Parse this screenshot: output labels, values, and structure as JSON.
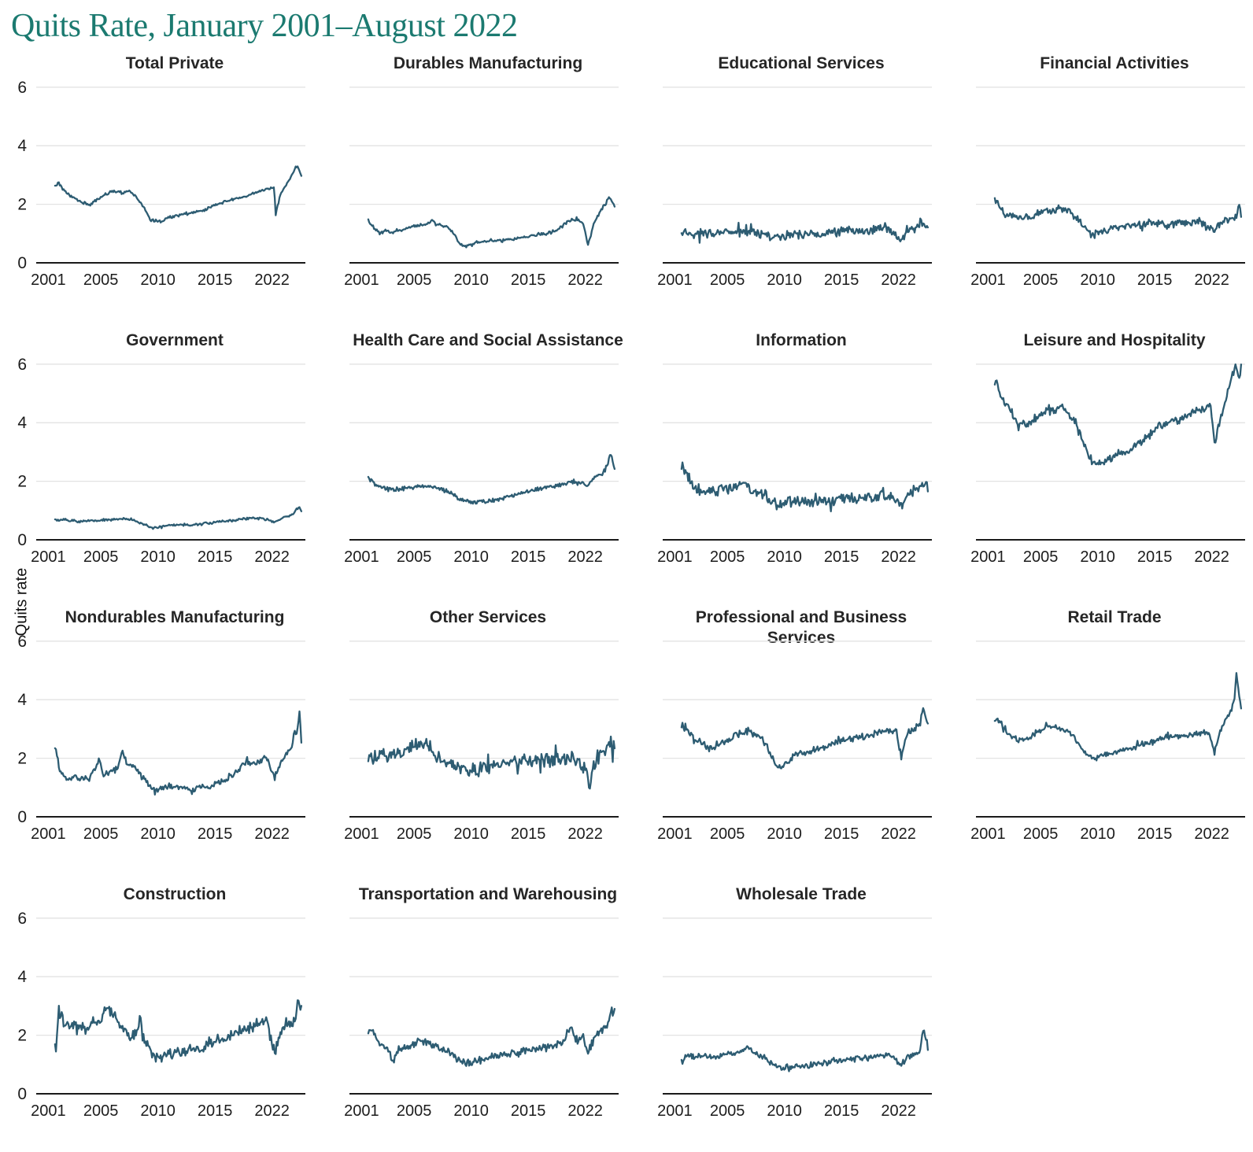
{
  "title": "Quits Rate, January 2001–August 2022",
  "ylabel": "Quits rate",
  "colors": {
    "title_accent": "#1b7a70",
    "line": "#2d5c72",
    "gridline": "#e3e3e3",
    "axis_line": "#1a1a1a",
    "panel_title": "#262626"
  },
  "axis": {
    "y_tick_labels": [
      "0",
      "2",
      "4",
      "6"
    ],
    "y_ticks": [
      0,
      2,
      4,
      6
    ],
    "ylim": [
      0,
      6
    ],
    "x_tick_labels": [
      "2001",
      "2005",
      "2010",
      "2015",
      "2022"
    ],
    "x_domain_years": [
      2001.0,
      2022.667
    ],
    "grid": "horizontal-only",
    "y_labels_only_on_first_column": true
  },
  "chart_data": [
    {
      "type": "line",
      "title": "Total Private",
      "noise": 0.045,
      "x": [
        2001,
        2001.3,
        2001.8,
        2002.5,
        2003.5,
        2004,
        2004.8,
        2005.5,
        2006,
        2007,
        2007.5,
        2008,
        2008.8,
        2009.4,
        2010.3,
        2011,
        2012,
        2013,
        2014,
        2015,
        2016,
        2017,
        2018,
        2019,
        2019.9,
        2020.2,
        2020.33,
        2020.8,
        2021.3,
        2021.9,
        2022.1,
        2022.4,
        2022.58
      ],
      "values": [
        2.6,
        2.75,
        2.45,
        2.25,
        2.05,
        1.97,
        2.2,
        2.35,
        2.45,
        2.4,
        2.45,
        2.3,
        1.9,
        1.45,
        1.42,
        1.55,
        1.65,
        1.7,
        1.8,
        1.95,
        2.1,
        2.2,
        2.3,
        2.45,
        2.55,
        2.6,
        1.65,
        2.4,
        2.7,
        3.1,
        3.3,
        3.2,
        3.0
      ]
    },
    {
      "type": "line",
      "title": "Durables Manufacturing",
      "noise": 0.06,
      "x": [
        2001,
        2001.5,
        2002,
        2002.5,
        2003,
        2004,
        2005,
        2006,
        2006.5,
        2007,
        2007.8,
        2008.5,
        2009,
        2009.5,
        2010,
        2010.5,
        2011.5,
        2012.5,
        2013.5,
        2014.5,
        2015.5,
        2016.5,
        2017.5,
        2018.3,
        2019,
        2019.8,
        2020.25,
        2020.8,
        2021.3,
        2021.8,
        2022.1,
        2022.3,
        2022.58
      ],
      "values": [
        1.45,
        1.2,
        1.0,
        1.1,
        1.05,
        1.15,
        1.25,
        1.3,
        1.45,
        1.3,
        1.25,
        1.0,
        0.65,
        0.55,
        0.6,
        0.7,
        0.75,
        0.75,
        0.8,
        0.85,
        0.95,
        1.0,
        1.1,
        1.35,
        1.45,
        1.4,
        0.6,
        1.4,
        1.75,
        2.0,
        2.25,
        2.1,
        1.95
      ]
    },
    {
      "type": "line",
      "title": "Educational Services",
      "noise": 0.16,
      "x": [
        2001,
        2002,
        2003,
        2004,
        2005,
        2006,
        2007,
        2008,
        2009,
        2010,
        2011,
        2012,
        2013,
        2014,
        2015,
        2016,
        2017,
        2018,
        2019,
        2020.25,
        2020.7,
        2021.5,
        2022.1,
        2022.4,
        2022.58
      ],
      "values": [
        1.05,
        1.0,
        1.0,
        1.0,
        1.05,
        1.05,
        1.1,
        1.0,
        0.9,
        0.95,
        0.95,
        1.0,
        1.0,
        1.05,
        1.1,
        1.15,
        1.1,
        1.15,
        1.2,
        0.75,
        1.05,
        1.2,
        1.45,
        1.3,
        1.2
      ]
    },
    {
      "type": "line",
      "title": "Financial Activities",
      "noise": 0.14,
      "x": [
        2001,
        2001.5,
        2002,
        2003,
        2004,
        2005,
        2005.5,
        2006,
        2006.5,
        2007,
        2007.5,
        2008,
        2008.8,
        2009.5,
        2010,
        2010.5,
        2011,
        2012,
        2013,
        2014,
        2015,
        2016,
        2017,
        2018,
        2019,
        2020.25,
        2020.8,
        2021.5,
        2022.2,
        2022.45,
        2022.58
      ],
      "values": [
        2.2,
        1.9,
        1.6,
        1.5,
        1.55,
        1.7,
        1.85,
        1.7,
        1.85,
        1.85,
        1.8,
        1.6,
        1.25,
        1.0,
        0.95,
        1.1,
        1.15,
        1.2,
        1.25,
        1.3,
        1.35,
        1.3,
        1.35,
        1.4,
        1.4,
        1.05,
        1.35,
        1.5,
        1.6,
        2.1,
        1.7
      ]
    },
    {
      "type": "line",
      "title": "Government",
      "noise": 0.045,
      "x": [
        2001,
        2002,
        2003,
        2004,
        2005,
        2006,
        2007,
        2008,
        2009,
        2009.5,
        2010.3,
        2011,
        2012,
        2013,
        2014,
        2015,
        2016,
        2017,
        2018,
        2019,
        2020.25,
        2020.8,
        2021.3,
        2021.8,
        2022.15,
        2022.4,
        2022.58
      ],
      "values": [
        0.7,
        0.68,
        0.62,
        0.65,
        0.66,
        0.7,
        0.72,
        0.65,
        0.5,
        0.42,
        0.43,
        0.5,
        0.52,
        0.52,
        0.55,
        0.6,
        0.65,
        0.68,
        0.72,
        0.75,
        0.6,
        0.75,
        0.8,
        0.85,
        1.05,
        1.1,
        0.95
      ]
    },
    {
      "type": "line",
      "title": "Health Care and Social Assistance",
      "noise": 0.07,
      "x": [
        2001,
        2001.5,
        2002,
        2003,
        2004,
        2005,
        2006,
        2007,
        2008,
        2009,
        2010,
        2011,
        2012,
        2013,
        2014,
        2015,
        2016,
        2017,
        2018,
        2019,
        2020.25,
        2020.7,
        2021.5,
        2021.9,
        2022.2,
        2022.4,
        2022.58
      ],
      "values": [
        2.1,
        1.95,
        1.8,
        1.7,
        1.75,
        1.8,
        1.8,
        1.8,
        1.65,
        1.4,
        1.3,
        1.3,
        1.35,
        1.45,
        1.55,
        1.65,
        1.75,
        1.8,
        1.9,
        2.0,
        1.85,
        2.1,
        2.25,
        2.5,
        3.0,
        2.7,
        2.45
      ]
    },
    {
      "type": "line",
      "title": "Information",
      "noise": 0.19,
      "x": [
        2001.08,
        2001.4,
        2002,
        2003,
        2004,
        2005,
        2006,
        2006.5,
        2007,
        2008,
        2009,
        2009.8,
        2010.5,
        2011,
        2012,
        2013,
        2014,
        2015,
        2016,
        2017,
        2018,
        2019,
        2020.25,
        2020.8,
        2021.3,
        2021.8,
        2022.2,
        2022.58
      ],
      "values": [
        2.45,
        2.3,
        1.8,
        1.65,
        1.7,
        1.75,
        1.85,
        1.95,
        1.8,
        1.55,
        1.35,
        1.1,
        1.3,
        1.25,
        1.3,
        1.35,
        1.3,
        1.4,
        1.4,
        1.45,
        1.5,
        1.55,
        1.2,
        1.55,
        1.7,
        1.8,
        1.9,
        1.75
      ]
    },
    {
      "type": "line",
      "title": "Leisure and Hospitality",
      "noise": 0.14,
      "x": [
        2001.08,
        2001.5,
        2002,
        2002.7,
        2003,
        2003.7,
        2004.3,
        2005,
        2005.7,
        2006.3,
        2006.8,
        2007.3,
        2008,
        2008.7,
        2009.3,
        2010,
        2010.7,
        2011.5,
        2012.3,
        2013,
        2014,
        2015,
        2016,
        2016.5,
        2017,
        2017.8,
        2018.5,
        2019.3,
        2019.9,
        2020.25,
        2020.6,
        2021,
        2021.5,
        2021.9,
        2022.1,
        2022.3,
        2022.5,
        2022.58
      ],
      "values": [
        5.4,
        4.9,
        4.6,
        4.2,
        4.0,
        3.9,
        4.1,
        4.3,
        4.5,
        4.4,
        4.55,
        4.4,
        4.1,
        3.4,
        2.8,
        2.55,
        2.7,
        2.85,
        3.0,
        3.1,
        3.4,
        3.75,
        4.0,
        4.1,
        4.05,
        4.2,
        4.35,
        4.5,
        4.6,
        3.3,
        3.9,
        4.4,
        5.2,
        5.7,
        5.9,
        5.5,
        5.6,
        6.05
      ]
    },
    {
      "type": "line",
      "title": "Nondurables Manufacturing",
      "noise": 0.1,
      "x": [
        2001.08,
        2001.4,
        2002,
        2002.5,
        2003,
        2004,
        2004.9,
        2005.2,
        2005.8,
        2006.5,
        2006.9,
        2007.3,
        2008,
        2008.7,
        2009.3,
        2010,
        2011,
        2012,
        2013,
        2014,
        2015,
        2016,
        2017,
        2017.8,
        2018.5,
        2019,
        2019.5,
        2020.25,
        2020.8,
        2021.3,
        2021.8,
        2022,
        2022.2,
        2022.42,
        2022.52,
        2022.58
      ],
      "values": [
        2.3,
        1.6,
        1.25,
        1.35,
        1.3,
        1.3,
        1.95,
        1.4,
        1.55,
        1.65,
        2.3,
        1.8,
        1.7,
        1.4,
        1.0,
        0.95,
        1.0,
        1.0,
        0.95,
        1.0,
        1.1,
        1.3,
        1.55,
        1.9,
        1.8,
        1.9,
        2.05,
        1.35,
        1.85,
        2.2,
        2.5,
        2.9,
        2.8,
        3.6,
        3.1,
        2.55
      ]
    },
    {
      "type": "line",
      "title": "Other Services",
      "noise": 0.23,
      "x": [
        2001.08,
        2001.5,
        2002,
        2003,
        2004,
        2004.8,
        2005.3,
        2005.8,
        2006.3,
        2007,
        2008,
        2009,
        2010,
        2011,
        2012,
        2013,
        2014,
        2015,
        2016,
        2017,
        2018,
        2019,
        2020.2,
        2020.33,
        2020.7,
        2021.2,
        2021.7,
        2022.1,
        2022.4,
        2022.58
      ],
      "values": [
        2.1,
        2.0,
        2.1,
        2.1,
        2.2,
        2.5,
        2.5,
        2.4,
        2.4,
        2.0,
        1.85,
        1.7,
        1.6,
        1.65,
        1.7,
        1.85,
        1.9,
        1.9,
        1.95,
        1.95,
        2.0,
        2.05,
        1.6,
        0.75,
        1.7,
        2.1,
        2.3,
        2.5,
        2.4,
        2.35
      ]
    },
    {
      "type": "line",
      "title": "Professional and Business Services",
      "noise": 0.13,
      "x": [
        2001.08,
        2001.6,
        2002.2,
        2003,
        2003.6,
        2004.3,
        2005,
        2005.8,
        2006.5,
        2007,
        2007.8,
        2008.5,
        2009.2,
        2009.7,
        2010.3,
        2011,
        2012,
        2013,
        2014,
        2015,
        2016,
        2017,
        2018,
        2019,
        2019.8,
        2020.25,
        2020.7,
        2021.3,
        2021.9,
        2022.2,
        2022.4,
        2022.58
      ],
      "values": [
        3.1,
        2.9,
        2.6,
        2.45,
        2.3,
        2.5,
        2.6,
        2.8,
        2.9,
        2.9,
        2.8,
        2.4,
        1.8,
        1.65,
        1.9,
        2.1,
        2.2,
        2.3,
        2.45,
        2.6,
        2.7,
        2.75,
        2.85,
        2.95,
        3.0,
        2.05,
        2.8,
        3.0,
        3.2,
        3.75,
        3.4,
        3.1
      ]
    },
    {
      "type": "line",
      "title": "Retail Trade",
      "noise": 0.1,
      "x": [
        2001.08,
        2001.5,
        2002,
        2002.7,
        2003.3,
        2004,
        2004.8,
        2005.5,
        2006.2,
        2007,
        2007.8,
        2008.5,
        2009.2,
        2009.8,
        2010.5,
        2011.3,
        2012,
        2013,
        2014,
        2015,
        2016,
        2017,
        2018,
        2019,
        2019.8,
        2020.25,
        2020.7,
        2021.2,
        2021.7,
        2022,
        2022.17,
        2022.35,
        2022.58
      ],
      "values": [
        3.35,
        3.2,
        2.9,
        2.7,
        2.6,
        2.7,
        2.9,
        3.1,
        3.05,
        3.0,
        2.8,
        2.4,
        2.1,
        2.0,
        2.1,
        2.2,
        2.25,
        2.35,
        2.5,
        2.6,
        2.7,
        2.75,
        2.8,
        2.85,
        2.9,
        2.1,
        2.9,
        3.3,
        3.6,
        4.0,
        4.95,
        4.3,
        3.65
      ]
    },
    {
      "type": "line",
      "title": "Construction",
      "noise": 0.2,
      "x": [
        2001.08,
        2001.3,
        2001.7,
        2002.3,
        2003,
        2003.7,
        2004.3,
        2005,
        2005.5,
        2005.8,
        2006.3,
        2007,
        2007.6,
        2008.2,
        2008.45,
        2008.7,
        2009.2,
        2009.7,
        2010.3,
        2011,
        2012,
        2013,
        2014,
        2015,
        2016,
        2017,
        2018,
        2019,
        2019.5,
        2020.25,
        2020.8,
        2021.3,
        2021.8,
        2022.1,
        2022.35,
        2022.5,
        2022.58
      ],
      "values": [
        1.6,
        2.9,
        2.5,
        2.4,
        2.3,
        2.2,
        2.5,
        2.5,
        3.05,
        2.8,
        2.6,
        2.2,
        2.0,
        2.1,
        2.6,
        1.9,
        1.55,
        1.2,
        1.25,
        1.35,
        1.45,
        1.55,
        1.6,
        1.8,
        1.9,
        2.1,
        2.25,
        2.4,
        2.6,
        1.45,
        2.1,
        2.3,
        2.5,
        2.7,
        3.3,
        2.8,
        2.95
      ]
    },
    {
      "type": "line",
      "title": "Transportation and Warehousing",
      "noise": 0.13,
      "x": [
        2001.08,
        2001.4,
        2002,
        2002.7,
        2003.2,
        2003.7,
        2004.3,
        2005,
        2005.5,
        2006,
        2006.7,
        2007.3,
        2008,
        2008.7,
        2009.3,
        2010,
        2010.7,
        2011.5,
        2012.3,
        2013,
        2014,
        2015,
        2016,
        2017,
        2018,
        2018.7,
        2019.2,
        2019.8,
        2020.25,
        2020.8,
        2021.3,
        2021.8,
        2022.1,
        2022.3,
        2022.5,
        2022.58
      ],
      "values": [
        2.2,
        2.1,
        1.7,
        1.55,
        1.1,
        1.5,
        1.55,
        1.65,
        1.9,
        1.75,
        1.65,
        1.55,
        1.45,
        1.25,
        1.1,
        1.05,
        1.15,
        1.2,
        1.3,
        1.35,
        1.4,
        1.5,
        1.55,
        1.6,
        1.7,
        2.3,
        1.9,
        1.95,
        1.4,
        2.0,
        2.1,
        2.3,
        2.5,
        2.9,
        2.7,
        2.85
      ]
    },
    {
      "type": "line",
      "title": "Wholesale Trade",
      "noise": 0.1,
      "x": [
        2001.08,
        2001.5,
        2002,
        2003,
        2004,
        2005,
        2006,
        2006.8,
        2007.3,
        2008,
        2009,
        2009.7,
        2010.5,
        2011.5,
        2012.5,
        2013.5,
        2014.5,
        2015.5,
        2016.5,
        2017.5,
        2018.5,
        2019.5,
        2020.25,
        2020.8,
        2021.3,
        2021.9,
        2022.2,
        2022.35,
        2022.5,
        2022.58
      ],
      "values": [
        1.1,
        1.3,
        1.25,
        1.3,
        1.25,
        1.35,
        1.4,
        1.65,
        1.4,
        1.3,
        1.0,
        0.9,
        0.9,
        0.95,
        1.0,
        1.05,
        1.15,
        1.2,
        1.2,
        1.25,
        1.3,
        1.3,
        0.95,
        1.25,
        1.35,
        1.4,
        2.3,
        1.9,
        1.75,
        1.45
      ]
    }
  ]
}
